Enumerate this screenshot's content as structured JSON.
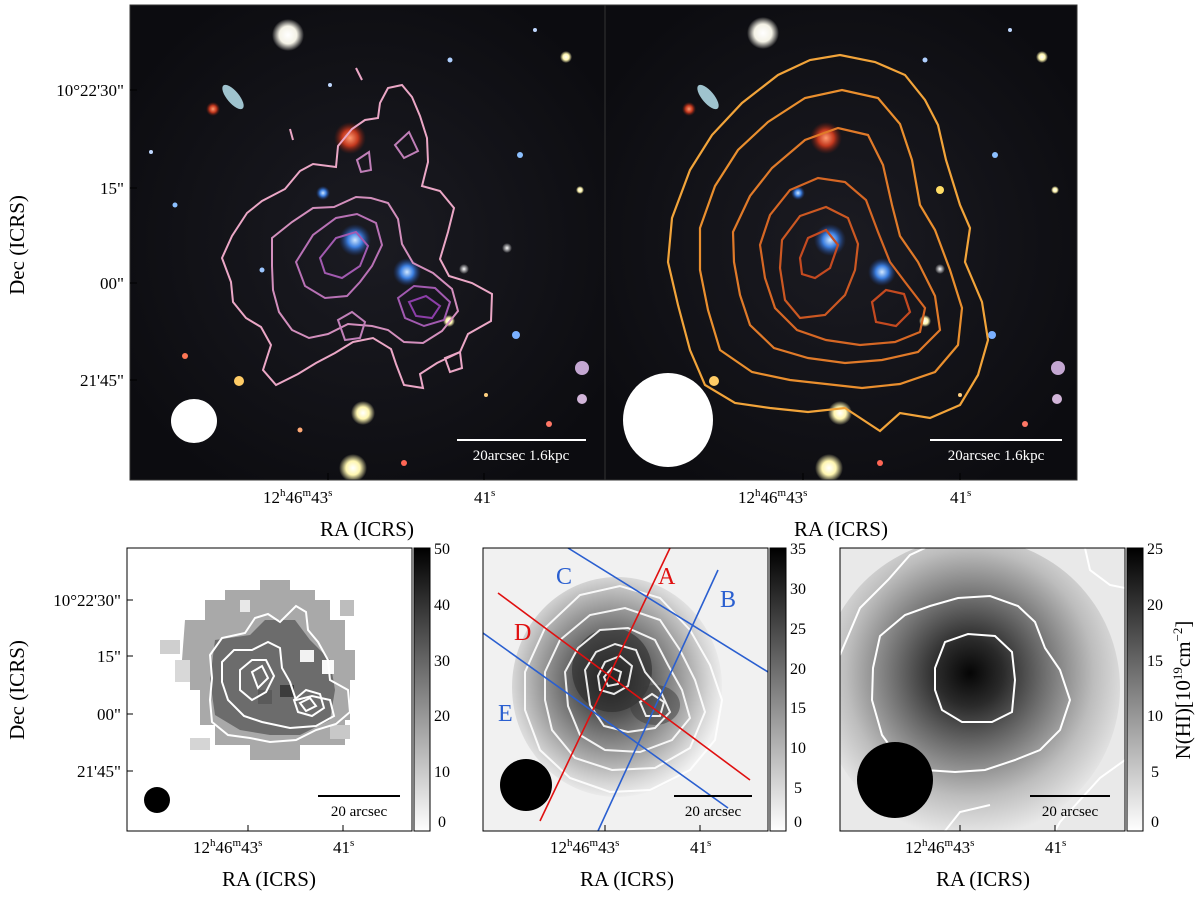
{
  "top_panels": {
    "left": {
      "dec_ticks": [
        "10°22'30\"",
        "15\"",
        "00\"",
        "21'45\""
      ],
      "ra_ticks": [
        "12h46m43s",
        "41s"
      ],
      "scale_bar": "20arcsec 1.6kpc",
      "contour_color": "#e7a9c6"
    },
    "right": {
      "ra_ticks": [
        "12h46m43s",
        "41s"
      ],
      "scale_bar": "20arcsec 1.6kpc",
      "contour_color": "#e8922a"
    },
    "dec_label": "Dec (ICRS)",
    "ra_label": "RA (ICRS)",
    "ra_ticks": {
      "h": "12",
      "hm": "46",
      "s": "43",
      "s2": "41"
    }
  },
  "bottom_panels": {
    "p1": {
      "dec_ticks": [
        "10°22'30\"",
        "15\"",
        "00\"",
        "21'45\""
      ],
      "colorbar_ticks": [
        "50",
        "40",
        "30",
        "20",
        "10",
        "0"
      ],
      "scale_bar": "20 arcsec",
      "ra_label": "RA (ICRS)",
      "dec_label": "Dec (ICRS)"
    },
    "p2": {
      "colorbar_ticks": [
        "35",
        "30",
        "25",
        "20",
        "15",
        "10",
        "5",
        "0"
      ],
      "scale_bar": "20 arcsec",
      "ra_label": "RA (ICRS)",
      "slits": [
        {
          "label": "A",
          "color": "#e01010"
        },
        {
          "label": "B",
          "color": "#2a5fd0"
        },
        {
          "label": "C",
          "color": "#2a5fd0"
        },
        {
          "label": "D",
          "color": "#e01010"
        },
        {
          "label": "E",
          "color": "#2a5fd0"
        }
      ]
    },
    "p3": {
      "colorbar_ticks": [
        "25",
        "20",
        "15",
        "10",
        "5",
        "0"
      ],
      "scale_bar": "20 arcsec",
      "ra_label": "RA (ICRS)",
      "colorbar_label": "N(HI)[10",
      "colorbar_label_exp": "19",
      "colorbar_label_unit": "cm",
      "colorbar_label_unit_exp": "−2",
      "colorbar_label_end": "]"
    }
  }
}
